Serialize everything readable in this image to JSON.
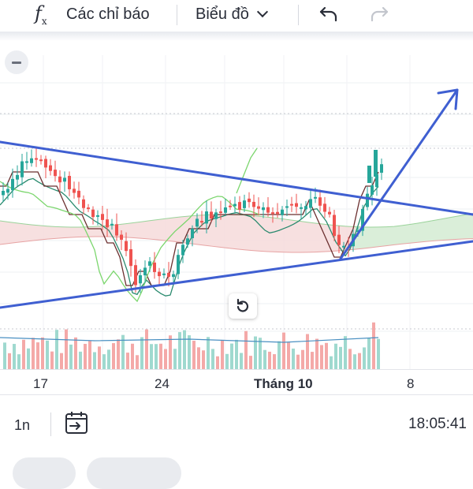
{
  "toolbar": {
    "fx_symbol": "f",
    "fx_sub": "x",
    "indicators_label": "Các chỉ báo",
    "chart_type_label": "Biểu đồ"
  },
  "date_axis": {
    "labels": [
      "17",
      "24",
      "Tháng 10",
      "8"
    ]
  },
  "bottom_bar": {
    "interval": "1n",
    "clock": "18:05:41"
  },
  "colors": {
    "up": "#26a69a",
    "down": "#ef5350",
    "trendline": "#3f5fd1",
    "baseline": "#2a8a6e",
    "conversion": "#6b2f2f",
    "lagging": "#7bd66d",
    "cloud_up": "#d8eed8",
    "cloud_down": "#f6dada"
  },
  "icons": {
    "indicators": "fx-icon",
    "chart_type": "chevron-down-icon",
    "undo": "undo-icon",
    "redo": "redo-icon",
    "collapse": "minus-icon",
    "reset": "reset-rotate-icon",
    "date_range": "calendar-arrow-icon"
  },
  "chart_data": {
    "type": "candlestick",
    "x_tick_labels": [
      "17",
      "24",
      "Tháng 10",
      "8"
    ],
    "drawings": [
      "upper trendline",
      "lower trendline",
      "breakout arrow"
    ],
    "indicators": [
      "Ichimoku cloud",
      "volume"
    ]
  }
}
